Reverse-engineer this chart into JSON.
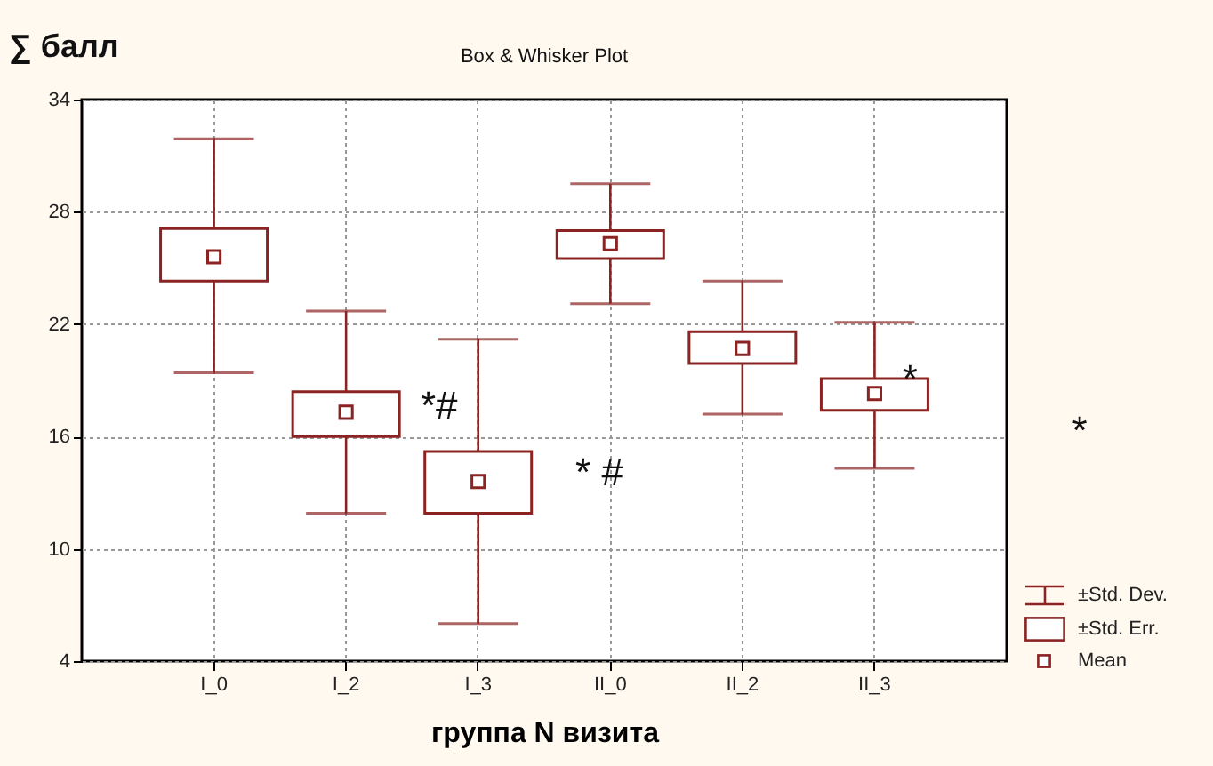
{
  "chart_data": {
    "type": "box",
    "title": "Box & Whisker Plot",
    "ylabel": "∑ балл",
    "xlabel": "группа  N визита",
    "categories": [
      "I_0",
      "I_2",
      "I_3",
      "II_0",
      "II_2",
      "II_3"
    ],
    "series": [
      {
        "color": "#8b2323",
        "boxes": [
          {
            "low": 19.4,
            "q1": 24.3,
            "q3": 27.1,
            "high": 31.9,
            "mean": 25.6
          },
          {
            "low": 11.9,
            "q1": 16.0,
            "q3": 18.4,
            "high": 22.7,
            "mean": 17.3
          },
          {
            "low": 6.0,
            "q1": 11.9,
            "q3": 15.2,
            "high": 21.2,
            "mean": 13.6
          },
          {
            "low": 23.1,
            "q1": 25.5,
            "q3": 27.0,
            "high": 29.5,
            "mean": 26.3
          },
          {
            "low": 17.2,
            "q1": 19.9,
            "q3": 21.6,
            "high": 24.3,
            "mean": 20.7
          },
          {
            "low": 14.3,
            "q1": 17.4,
            "q3": 19.1,
            "high": 22.1,
            "mean": 18.3
          }
        ]
      }
    ],
    "ylim": [
      4,
      34
    ],
    "yticks": [
      4,
      10,
      16,
      22,
      28,
      34
    ],
    "grid": true,
    "marker": "square",
    "annotations": [
      {
        "text": "*#",
        "x": "I_3",
        "y": 18.2
      },
      {
        "text": "*",
        "x": "II_3",
        "y": 19.6
      },
      "* #",
      "*",
      "±Std. Dev.",
      "±Std. Err.",
      "Mean"
    ]
  }
}
